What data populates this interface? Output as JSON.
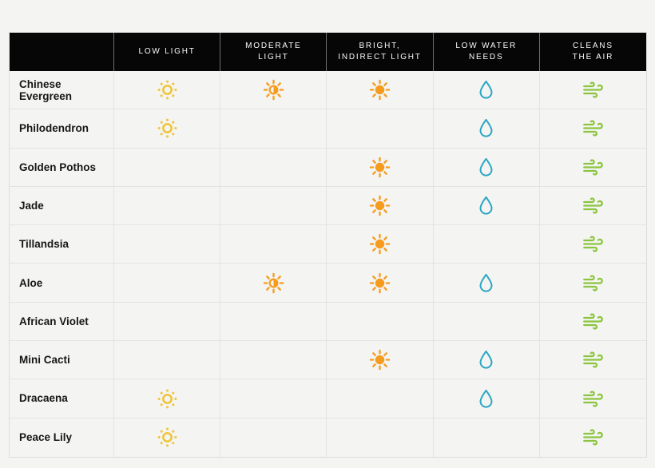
{
  "page": {
    "background_color": "#f4f4f2",
    "header_background": "#060606",
    "header_text_color": "#fafafa",
    "grid_line_color": "#e3e3e1"
  },
  "table": {
    "columns": [
      {
        "id": "low_light",
        "label": "LOW LIGHT",
        "icon": "sun-outline-icon",
        "color": "#efc53c"
      },
      {
        "id": "moderate_light",
        "label": "MODERATE\nLIGHT",
        "icon": "sun-half-icon",
        "color": "#f59c1e"
      },
      {
        "id": "bright_indirect_light",
        "label": "BRIGHT,\nINDIRECT LIGHT",
        "icon": "sun-filled-icon",
        "color": "#f59c1e"
      },
      {
        "id": "low_water_needs",
        "label": "LOW WATER\nNEEDS",
        "icon": "water-drop-icon",
        "color": "#2ba7c4"
      },
      {
        "id": "cleans_the_air",
        "label": "CLEANS\nTHE AIR",
        "icon": "wind-icon",
        "color": "#8bc53f"
      }
    ],
    "rows": [
      {
        "name": "Chinese Evergreen",
        "attributes": {
          "low_light": true,
          "moderate_light": true,
          "bright_indirect_light": true,
          "low_water_needs": true,
          "cleans_the_air": true
        }
      },
      {
        "name": "Philodendron",
        "attributes": {
          "low_light": true,
          "moderate_light": false,
          "bright_indirect_light": false,
          "low_water_needs": true,
          "cleans_the_air": true
        }
      },
      {
        "name": "Golden Pothos",
        "attributes": {
          "low_light": false,
          "moderate_light": false,
          "bright_indirect_light": true,
          "low_water_needs": true,
          "cleans_the_air": true
        }
      },
      {
        "name": "Jade",
        "attributes": {
          "low_light": false,
          "moderate_light": false,
          "bright_indirect_light": true,
          "low_water_needs": true,
          "cleans_the_air": true
        }
      },
      {
        "name": "Tillandsia",
        "attributes": {
          "low_light": false,
          "moderate_light": false,
          "bright_indirect_light": true,
          "low_water_needs": false,
          "cleans_the_air": true
        }
      },
      {
        "name": "Aloe",
        "attributes": {
          "low_light": false,
          "moderate_light": true,
          "bright_indirect_light": true,
          "low_water_needs": true,
          "cleans_the_air": true
        }
      },
      {
        "name": "African Violet",
        "attributes": {
          "low_light": false,
          "moderate_light": false,
          "bright_indirect_light": false,
          "low_water_needs": false,
          "cleans_the_air": true
        }
      },
      {
        "name": "Mini Cacti",
        "attributes": {
          "low_light": false,
          "moderate_light": false,
          "bright_indirect_light": true,
          "low_water_needs": true,
          "cleans_the_air": true
        }
      },
      {
        "name": "Dracaena",
        "attributes": {
          "low_light": true,
          "moderate_light": false,
          "bright_indirect_light": false,
          "low_water_needs": true,
          "cleans_the_air": true
        }
      },
      {
        "name": "Peace Lily",
        "attributes": {
          "low_light": true,
          "moderate_light": false,
          "bright_indirect_light": false,
          "low_water_needs": false,
          "cleans_the_air": true
        }
      }
    ]
  },
  "chart_data": {
    "type": "table",
    "title": "",
    "columns": [
      "LOW LIGHT",
      "MODERATE LIGHT",
      "BRIGHT, INDIRECT LIGHT",
      "LOW WATER NEEDS",
      "CLEANS THE AIR"
    ],
    "categories": [
      "Chinese Evergreen",
      "Philodendron",
      "Golden Pothos",
      "Jade",
      "Tillandsia",
      "Aloe",
      "African Violet",
      "Mini Cacti",
      "Dracaena",
      "Peace Lily"
    ],
    "matrix": [
      [
        1,
        1,
        1,
        1,
        1
      ],
      [
        1,
        0,
        0,
        1,
        1
      ],
      [
        0,
        0,
        1,
        1,
        1
      ],
      [
        0,
        0,
        1,
        1,
        1
      ],
      [
        0,
        0,
        1,
        0,
        1
      ],
      [
        0,
        1,
        1,
        1,
        1
      ],
      [
        0,
        0,
        0,
        0,
        1
      ],
      [
        0,
        0,
        1,
        1,
        1
      ],
      [
        1,
        0,
        0,
        1,
        1
      ],
      [
        1,
        0,
        0,
        0,
        1
      ]
    ],
    "legend_position": "none",
    "notes": "1 = attribute icon present in cell, 0 = empty cell"
  }
}
